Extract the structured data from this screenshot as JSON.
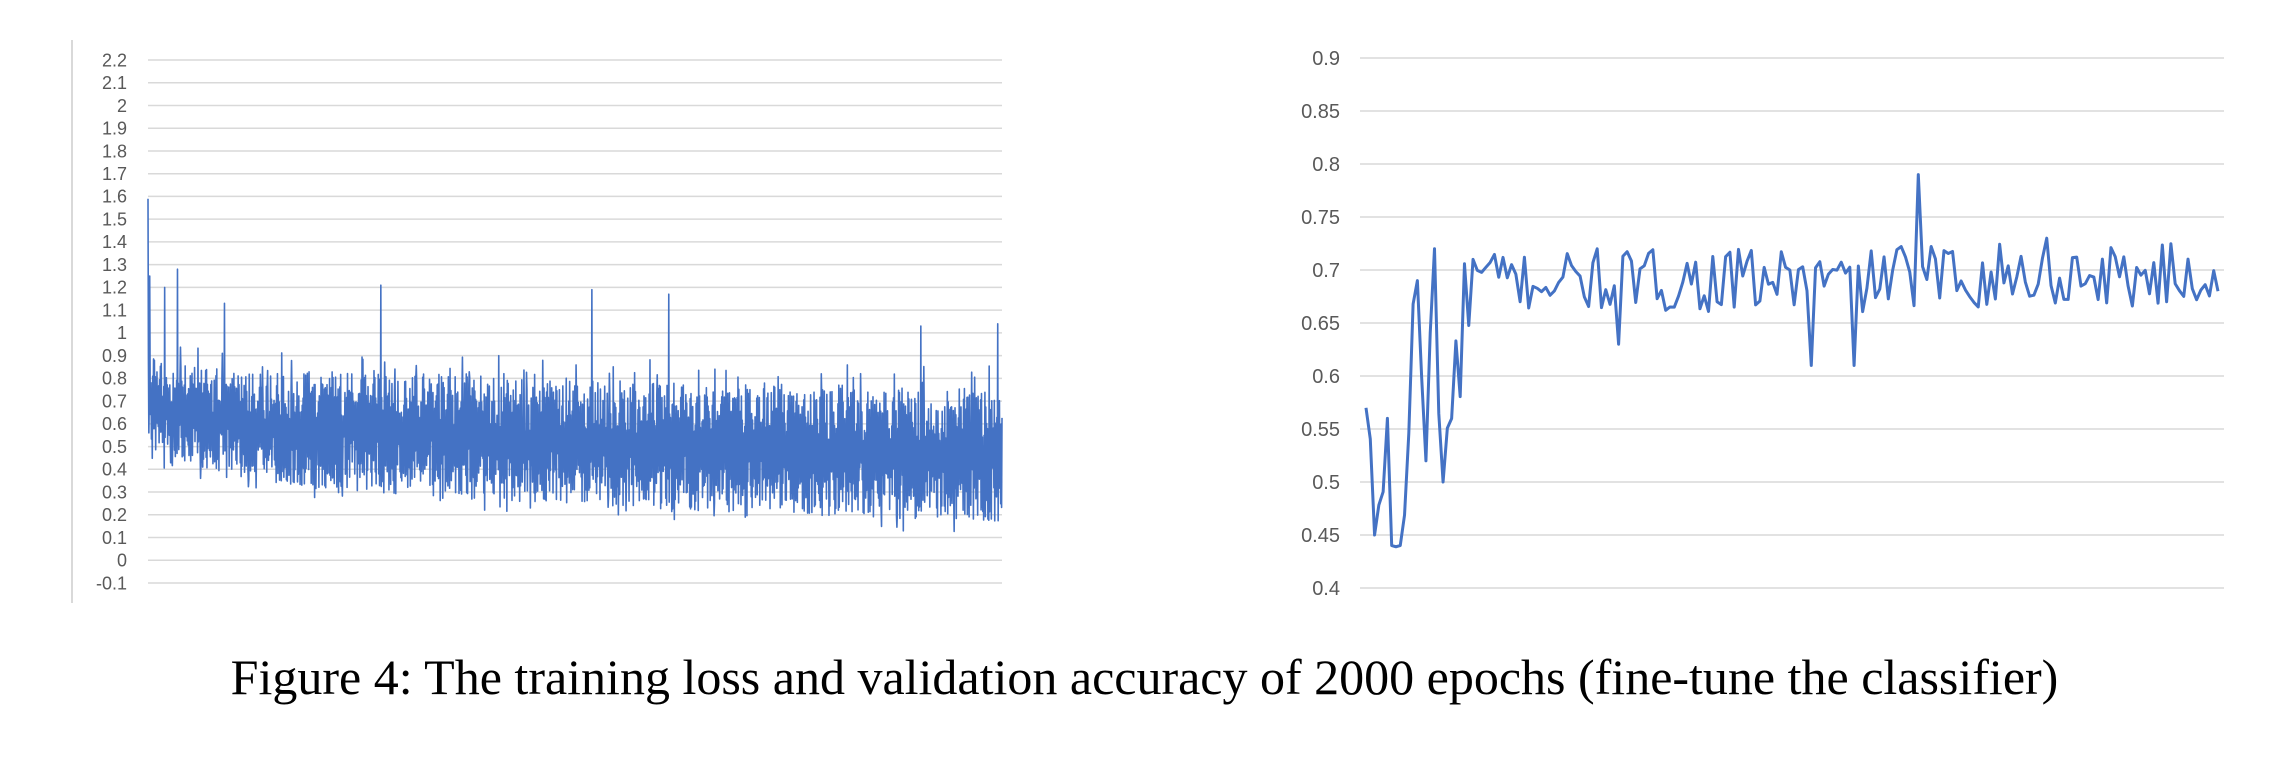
{
  "caption": "Figure 4: The training loss and validation accuracy of 2000 epochs (fine-tune the classifier)",
  "chart_data": [
    {
      "type": "line",
      "title": "",
      "xlabel": "",
      "ylabel": "",
      "ylim": [
        -0.1,
        2.2
      ],
      "yticks": [
        "-0.1",
        "0",
        "0.1",
        "0.2",
        "0.3",
        "0.4",
        "0.5",
        "0.6",
        "0.7",
        "0.8",
        "0.9",
        "1",
        "1.1",
        "1.2",
        "1.3",
        "1.4",
        "1.5",
        "1.6",
        "1.7",
        "1.8",
        "1.9",
        "2",
        "2.1",
        "2.2"
      ],
      "grid": true,
      "legend": "none",
      "color": "#4472C4",
      "n_points": 2000,
      "envelope": {
        "x": [
          1,
          100,
          250,
          500,
          750,
          1000,
          1250,
          1500,
          1750,
          2000
        ],
        "upper": [
          0.9,
          0.86,
          0.82,
          0.84,
          0.82,
          0.8,
          0.78,
          0.78,
          0.76,
          0.76
        ],
        "lower": [
          0.45,
          0.42,
          0.35,
          0.3,
          0.27,
          0.25,
          0.22,
          0.2,
          0.18,
          0.17
        ]
      },
      "spikes": [
        {
          "x": 1,
          "y": 1.59
        },
        {
          "x": 5,
          "y": 1.25
        },
        {
          "x": 40,
          "y": 1.2
        },
        {
          "x": 70,
          "y": 1.28
        },
        {
          "x": 180,
          "y": 1.13
        },
        {
          "x": 546,
          "y": 1.21
        },
        {
          "x": 1040,
          "y": 1.19
        },
        {
          "x": 1220,
          "y": 1.17
        },
        {
          "x": 1810,
          "y": 1.03
        },
        {
          "x": 1990,
          "y": 1.04
        }
      ]
    },
    {
      "type": "line",
      "title": "",
      "xlabel": "",
      "ylabel": "",
      "ylim": [
        0.4,
        0.9
      ],
      "yticks": [
        "0.4",
        "0.45",
        "0.5",
        "0.55",
        "0.6",
        "0.65",
        "0.7",
        "0.75",
        "0.8",
        "0.85",
        "0.9"
      ],
      "grid": true,
      "legend": "none",
      "color": "#4472C4",
      "n_points": 200,
      "key_points": [
        {
          "x": 1,
          "y": 0.57
        },
        {
          "x": 3,
          "y": 0.45
        },
        {
          "x": 6,
          "y": 0.56
        },
        {
          "x": 7,
          "y": 0.44
        },
        {
          "x": 9,
          "y": 0.44
        },
        {
          "x": 13,
          "y": 0.69
        },
        {
          "x": 15,
          "y": 0.52
        },
        {
          "x": 17,
          "y": 0.72
        },
        {
          "x": 19,
          "y": 0.5
        },
        {
          "x": 26,
          "y": 0.71
        },
        {
          "x": 60,
          "y": 0.63
        },
        {
          "x": 100,
          "y": 0.7
        },
        {
          "x": 105,
          "y": 0.61
        },
        {
          "x": 115,
          "y": 0.61
        },
        {
          "x": 130,
          "y": 0.79
        },
        {
          "x": 160,
          "y": 0.73
        },
        {
          "x": 200,
          "y": 0.68
        }
      ]
    }
  ]
}
